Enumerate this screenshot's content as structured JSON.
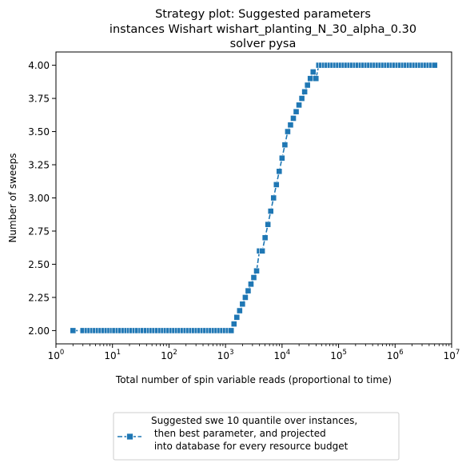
{
  "chart_data": {
    "type": "line",
    "title": [
      "Strategy plot: Suggested parameters",
      "instances Wishart wishart_planting_N_30_alpha_0.30",
      "solver pysa"
    ],
    "xlabel": "Total number of spin variable reads (proportional to time)",
    "ylabel": "Number of sweeps",
    "xscale": "log",
    "xlim": [
      1,
      10000000
    ],
    "ylim": [
      1.9,
      4.1
    ],
    "grid": false,
    "legend_placement": "bottom-center-outside",
    "x_ticks": [
      1,
      10,
      100,
      1000,
      10000,
      100000,
      1000000,
      10000000
    ],
    "x_tick_labels": [
      {
        "base": "10",
        "exp": "0"
      },
      {
        "base": "10",
        "exp": "1"
      },
      {
        "base": "10",
        "exp": "2"
      },
      {
        "base": "10",
        "exp": "3"
      },
      {
        "base": "10",
        "exp": "4"
      },
      {
        "base": "10",
        "exp": "5"
      },
      {
        "base": "10",
        "exp": "6"
      },
      {
        "base": "10",
        "exp": "7"
      }
    ],
    "y_ticks": [
      2.0,
      2.25,
      2.5,
      2.75,
      3.0,
      3.25,
      3.5,
      3.75,
      4.0
    ],
    "y_tick_labels": [
      "2.00",
      "2.25",
      "2.50",
      "2.75",
      "3.00",
      "3.25",
      "3.50",
      "3.75",
      "4.00"
    ],
    "series": [
      {
        "name": "Suggested swe 10 quantile over instances,\n then best parameter, and projected\n into database for every resource budget",
        "color": "#1f77b4",
        "marker": "square",
        "points": [
          {
            "x": 2,
            "y": 2.0
          },
          {
            "x": 3,
            "y": 2.0
          },
          {
            "x": 3.6,
            "y": 2.0
          },
          {
            "x": 4,
            "y": 2.0
          },
          {
            "x": 4.5,
            "y": 2.0
          },
          {
            "x": 5,
            "y": 2.0
          },
          {
            "x": 5.6,
            "y": 2.0
          },
          {
            "x": 6.3,
            "y": 2.0
          },
          {
            "x": 7.1,
            "y": 2.0
          },
          {
            "x": 8,
            "y": 2.0
          },
          {
            "x": 9,
            "y": 2.0
          },
          {
            "x": 10,
            "y": 2.0
          },
          {
            "x": 11,
            "y": 2.0
          },
          {
            "x": 12.6,
            "y": 2.0
          },
          {
            "x": 14,
            "y": 2.0
          },
          {
            "x": 16,
            "y": 2.0
          },
          {
            "x": 18,
            "y": 2.0
          },
          {
            "x": 20,
            "y": 2.0
          },
          {
            "x": 22,
            "y": 2.0
          },
          {
            "x": 25,
            "y": 2.0
          },
          {
            "x": 28,
            "y": 2.0
          },
          {
            "x": 32,
            "y": 2.0
          },
          {
            "x": 35,
            "y": 2.0
          },
          {
            "x": 40,
            "y": 2.0
          },
          {
            "x": 45,
            "y": 2.0
          },
          {
            "x": 50,
            "y": 2.0
          },
          {
            "x": 56,
            "y": 2.0
          },
          {
            "x": 63,
            "y": 2.0
          },
          {
            "x": 71,
            "y": 2.0
          },
          {
            "x": 80,
            "y": 2.0
          },
          {
            "x": 89,
            "y": 2.0
          },
          {
            "x": 100,
            "y": 2.0
          },
          {
            "x": 112,
            "y": 2.0
          },
          {
            "x": 126,
            "y": 2.0
          },
          {
            "x": 141,
            "y": 2.0
          },
          {
            "x": 158,
            "y": 2.0
          },
          {
            "x": 178,
            "y": 2.0
          },
          {
            "x": 200,
            "y": 2.0
          },
          {
            "x": 224,
            "y": 2.0
          },
          {
            "x": 251,
            "y": 2.0
          },
          {
            "x": 282,
            "y": 2.0
          },
          {
            "x": 316,
            "y": 2.0
          },
          {
            "x": 355,
            "y": 2.0
          },
          {
            "x": 398,
            "y": 2.0
          },
          {
            "x": 447,
            "y": 2.0
          },
          {
            "x": 501,
            "y": 2.0
          },
          {
            "x": 562,
            "y": 2.0
          },
          {
            "x": 631,
            "y": 2.0
          },
          {
            "x": 708,
            "y": 2.0
          },
          {
            "x": 794,
            "y": 2.0
          },
          {
            "x": 891,
            "y": 2.0
          },
          {
            "x": 1000,
            "y": 2.0
          },
          {
            "x": 1122,
            "y": 2.0
          },
          {
            "x": 1259,
            "y": 2.0
          },
          {
            "x": 1413,
            "y": 2.05
          },
          {
            "x": 1585,
            "y": 2.1
          },
          {
            "x": 1778,
            "y": 2.15
          },
          {
            "x": 1995,
            "y": 2.2
          },
          {
            "x": 2239,
            "y": 2.25
          },
          {
            "x": 2512,
            "y": 2.3
          },
          {
            "x": 2818,
            "y": 2.35
          },
          {
            "x": 3162,
            "y": 2.4
          },
          {
            "x": 3548,
            "y": 2.45
          },
          {
            "x": 3981,
            "y": 2.6
          },
          {
            "x": 4467,
            "y": 2.6
          },
          {
            "x": 5012,
            "y": 2.7
          },
          {
            "x": 5623,
            "y": 2.8
          },
          {
            "x": 6310,
            "y": 2.9
          },
          {
            "x": 7079,
            "y": 3.0
          },
          {
            "x": 7943,
            "y": 3.1
          },
          {
            "x": 8913,
            "y": 3.2
          },
          {
            "x": 10000,
            "y": 3.3
          },
          {
            "x": 11220,
            "y": 3.4
          },
          {
            "x": 12589,
            "y": 3.5
          },
          {
            "x": 14125,
            "y": 3.55
          },
          {
            "x": 15849,
            "y": 3.6
          },
          {
            "x": 17783,
            "y": 3.65
          },
          {
            "x": 19953,
            "y": 3.7
          },
          {
            "x": 22387,
            "y": 3.75
          },
          {
            "x": 25119,
            "y": 3.8
          },
          {
            "x": 28184,
            "y": 3.85
          },
          {
            "x": 31623,
            "y": 3.9
          },
          {
            "x": 35481,
            "y": 3.95
          },
          {
            "x": 39811,
            "y": 3.9
          },
          {
            "x": 44668,
            "y": 4.0
          },
          {
            "x": 50119,
            "y": 4.0
          },
          {
            "x": 56234,
            "y": 4.0
          },
          {
            "x": 63096,
            "y": 4.0
          },
          {
            "x": 70795,
            "y": 4.0
          },
          {
            "x": 79433,
            "y": 4.0
          },
          {
            "x": 89125,
            "y": 4.0
          },
          {
            "x": 100000,
            "y": 4.0
          },
          {
            "x": 112202,
            "y": 4.0
          },
          {
            "x": 125893,
            "y": 4.0
          },
          {
            "x": 141254,
            "y": 4.0
          },
          {
            "x": 158489,
            "y": 4.0
          },
          {
            "x": 177828,
            "y": 4.0
          },
          {
            "x": 199526,
            "y": 4.0
          },
          {
            "x": 223872,
            "y": 4.0
          },
          {
            "x": 251189,
            "y": 4.0
          },
          {
            "x": 281838,
            "y": 4.0
          },
          {
            "x": 316228,
            "y": 4.0
          },
          {
            "x": 354813,
            "y": 4.0
          },
          {
            "x": 398107,
            "y": 4.0
          },
          {
            "x": 446684,
            "y": 4.0
          },
          {
            "x": 501187,
            "y": 4.0
          },
          {
            "x": 562341,
            "y": 4.0
          },
          {
            "x": 630957,
            "y": 4.0
          },
          {
            "x": 707946,
            "y": 4.0
          },
          {
            "x": 794328,
            "y": 4.0
          },
          {
            "x": 891251,
            "y": 4.0
          },
          {
            "x": 1000000,
            "y": 4.0
          },
          {
            "x": 1122018,
            "y": 4.0
          },
          {
            "x": 1258925,
            "y": 4.0
          },
          {
            "x": 1412538,
            "y": 4.0
          },
          {
            "x": 1584893,
            "y": 4.0
          },
          {
            "x": 1778279,
            "y": 4.0
          },
          {
            "x": 1995262,
            "y": 4.0
          },
          {
            "x": 2238721,
            "y": 4.0
          },
          {
            "x": 2511886,
            "y": 4.0
          },
          {
            "x": 2818383,
            "y": 4.0
          },
          {
            "x": 3162278,
            "y": 4.0
          },
          {
            "x": 3548134,
            "y": 4.0
          },
          {
            "x": 3981072,
            "y": 4.0
          },
          {
            "x": 4466836,
            "y": 4.0
          },
          {
            "x": 5011872,
            "y": 4.0
          }
        ]
      }
    ]
  }
}
